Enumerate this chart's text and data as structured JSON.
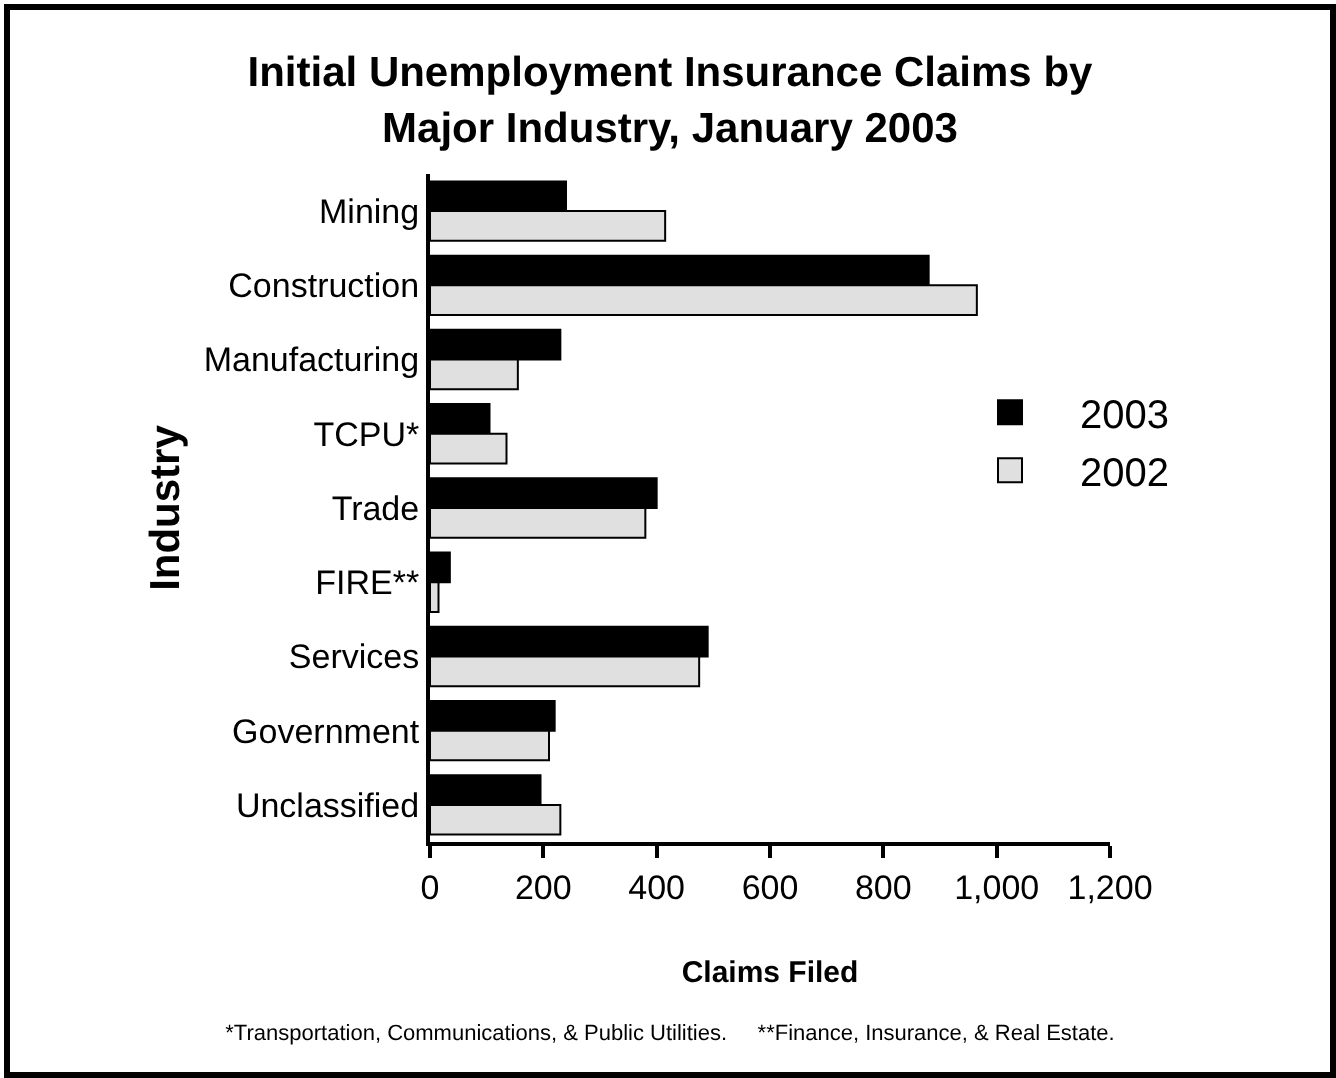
{
  "chart_data": {
    "type": "bar",
    "orientation": "horizontal",
    "title": "Initial Unemployment Insurance Claims by Major Industry, January 2003",
    "xlabel": "Claims Filed",
    "ylabel": "Industry",
    "categories": [
      "Mining",
      "Construction",
      "Manufacturing",
      "TCPU*",
      "Trade",
      "FIRE**",
      "Services",
      "Government",
      "Unclassified"
    ],
    "series": [
      {
        "name": "2003",
        "color": "#000000",
        "values": [
          240,
          880,
          230,
          105,
          400,
          35,
          490,
          220,
          195
        ]
      },
      {
        "name": "2002",
        "color": "#e0e0e0",
        "values": [
          415,
          965,
          155,
          135,
          380,
          15,
          475,
          210,
          230
        ]
      }
    ],
    "xlim": [
      0,
      1200
    ],
    "xticks": [
      0,
      200,
      400,
      600,
      800,
      {
        "value": 1000,
        "label": "1,000"
      },
      {
        "value": 1200,
        "label": "1,200"
      }
    ],
    "grid": false,
    "legend": "right",
    "annotations": [
      "*Transportation, Communications, & Public Utilities.     **Finance, Insurance, & Real Estate."
    ]
  }
}
